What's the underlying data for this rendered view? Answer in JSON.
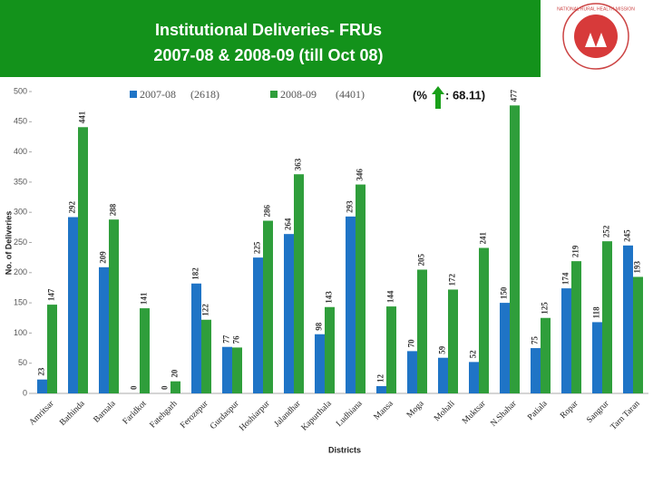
{
  "header": {
    "title_lines": [
      "Institutional Deliveries- FRUs",
      "2007-08 & 2008-09 (till Oct 08)"
    ],
    "logo_text": "NATIONAL RURAL HEALTH MISSION"
  },
  "chart_data": {
    "type": "bar",
    "categories": [
      "Amritsar",
      "Bathinda",
      "Barnala",
      "Faridkot",
      "Fatehgarh",
      "Ferozepur",
      "Gurdaspur",
      "Hoshiarpur",
      "Jalandhar",
      "Kapurthala",
      "Ludhiana",
      "Mansa",
      "Moga",
      "Mohali",
      "Muktsar",
      "N.Shahar",
      "Patiala",
      "Ropar",
      "Sangrur",
      "Tarn Taran"
    ],
    "series": [
      {
        "name": "2007-08",
        "total_label": "(2618)",
        "color": "#1f74c6",
        "values": [
          23,
          292,
          209,
          0,
          0,
          182,
          77,
          225,
          264,
          98,
          293,
          12,
          70,
          59,
          52,
          150,
          75,
          174,
          118,
          245
        ]
      },
      {
        "name": "2008-09",
        "total_label": "(4401)",
        "color": "#2f9e3b",
        "values": [
          147,
          441,
          288,
          141,
          20,
          122,
          76,
          286,
          363,
          143,
          346,
          144,
          205,
          172,
          241,
          477,
          125,
          219,
          252,
          193
        ]
      }
    ],
    "annotation": [
      "(%",
      ": 68.11)"
    ],
    "xlabel": "Districts",
    "ylabel": "No. of Deliveries",
    "ylim": [
      0,
      500
    ],
    "yticks": [
      0,
      50,
      100,
      150,
      200,
      250,
      300,
      350,
      400,
      450,
      500
    ]
  }
}
